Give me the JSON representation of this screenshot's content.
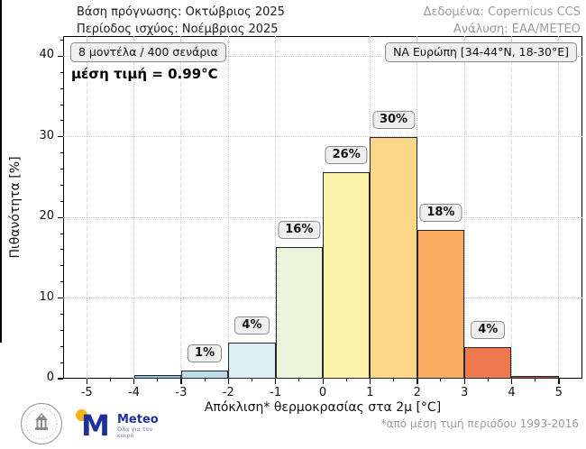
{
  "header": {
    "left_line1": "Βάση πρόγνωσης: Οκτώβριος 2025",
    "left_line2": "Περίοδος ισχύος: Νοέμβριος 2025",
    "right_line1": "Δεδομένα: Copernicus CCS",
    "right_line2": "Ανάλυση: ΕΑΑ/ΜΕΤΕΟ"
  },
  "annotations": {
    "models_box": "8 μοντέλα / 400 σενάρια",
    "mean_text": "μέση τιμή = 0.99°C",
    "region_box": "ΝΑ Ευρώπη [34-44°N, 18-30°E]"
  },
  "chart_data": {
    "type": "bar",
    "title": "",
    "xlabel": "Απόκλιση* θερμοκρασίας στα 2μ [°C]",
    "ylabel": "Πιθανότητα [%]",
    "xlim": [
      -5.5,
      5.5
    ],
    "ylim": [
      0,
      42.5
    ],
    "x_ticks": [
      -5,
      -4,
      -3,
      -2,
      -1,
      0,
      1,
      2,
      3,
      4,
      5
    ],
    "y_ticks": [
      0,
      10,
      20,
      30,
      40
    ],
    "x_minor_step": 0.5,
    "y_minor_step": 2,
    "grid": "dotted-major",
    "zero_line": true,
    "legend_position": "none",
    "bins": [
      {
        "from": -5,
        "to": -4,
        "value": 0,
        "label": null,
        "color": null
      },
      {
        "from": -4,
        "to": -3,
        "value": 0.4,
        "label": null,
        "color": "#8fbcd8"
      },
      {
        "from": -3,
        "to": -2,
        "value": 1.0,
        "label": "1%",
        "color": "#bcdcec"
      },
      {
        "from": -2,
        "to": -1,
        "value": 4.5,
        "label": "4%",
        "color": "#dcedf4"
      },
      {
        "from": -1,
        "to": 0,
        "value": 16.3,
        "label": "16%",
        "color": "#eaf5da"
      },
      {
        "from": 0,
        "to": 1,
        "value": 25.6,
        "label": "26%",
        "color": "#fdf2a9"
      },
      {
        "from": 1,
        "to": 2,
        "value": 30.0,
        "label": "30%",
        "color": "#fcd787"
      },
      {
        "from": 2,
        "to": 3,
        "value": 18.5,
        "label": "18%",
        "color": "#fbab61"
      },
      {
        "from": 3,
        "to": 4,
        "value": 3.9,
        "label": "4%",
        "color": "#f0784f"
      },
      {
        "from": 4,
        "to": 5,
        "value": 0.35,
        "label": null,
        "color": "#bc4a38"
      }
    ]
  },
  "footer": {
    "footnote": "*από μέση τιμή περιόδου 1993-2016",
    "meteo_name": "Meteo",
    "meteo_tagline": "Όλα για τον καιρό"
  },
  "colors": {
    "bar_edge": "#23292e",
    "grid": "#c9c9c9",
    "axis": "#000000",
    "header_muted": "#9b9b9b",
    "annotation_bg": "#efefef",
    "annotation_border": "#8a8a8a",
    "meteo_blue": "#1f2f9b",
    "meteo_yellow": "#f5b31a",
    "seal_gray": "#8a8a8a"
  }
}
